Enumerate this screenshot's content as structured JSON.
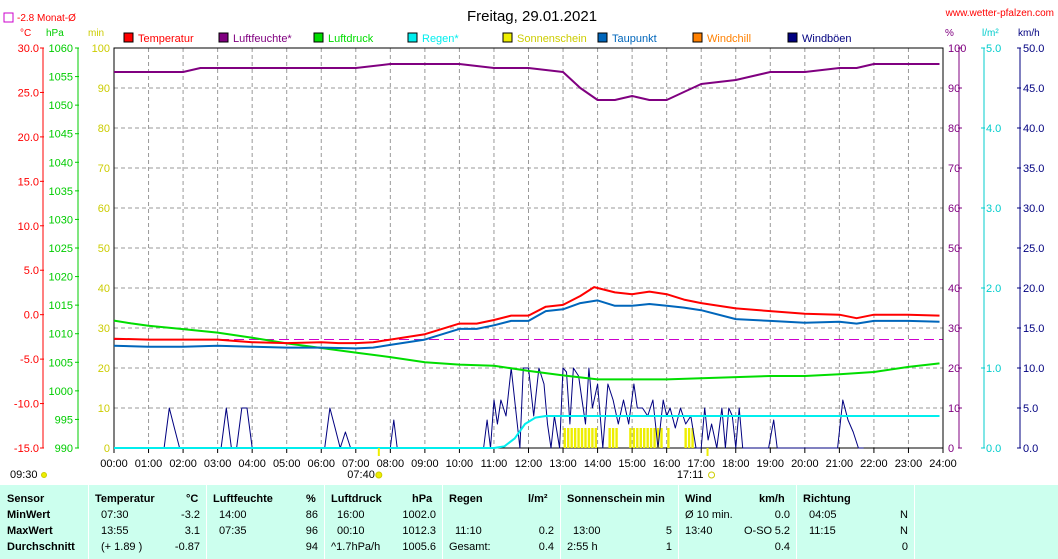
{
  "chart_data": {
    "type": "line",
    "title": "Freitag, 29.01.2021",
    "source": "www.wetter-pfalzen.com",
    "monthly_avg_label": "-2.8 Monat-Ø",
    "unit_labels": {
      "temp": "°C",
      "pressure": "hPa",
      "minutes": "min",
      "humidity": "%",
      "rain": "l/m²",
      "wind": "km/h"
    },
    "axes": {
      "temp": {
        "range": [
          -15,
          30
        ],
        "ticks": [
          "30.0",
          "25.0",
          "20.0",
          "15.0",
          "10.0",
          "5.0",
          "0.0",
          "-5.0",
          "-10.0",
          "-15.0"
        ]
      },
      "pressure": {
        "range": [
          990,
          1060
        ],
        "ticks": [
          "1060",
          "1055",
          "1050",
          "1045",
          "1040",
          "1035",
          "1030",
          "1025",
          "1020",
          "1015",
          "1010",
          "1005",
          "1000",
          "995",
          "990"
        ]
      },
      "minutes": {
        "range": [
          0,
          100
        ],
        "ticks": [
          "100",
          "90",
          "80",
          "70",
          "60",
          "50",
          "40",
          "30",
          "20",
          "10",
          "0"
        ]
      },
      "humidity": {
        "range": [
          0,
          100
        ],
        "ticks": [
          "100",
          "90",
          "80",
          "70",
          "60",
          "50",
          "40",
          "30",
          "20",
          "10",
          "0"
        ]
      },
      "rain": {
        "range": [
          0,
          5
        ],
        "ticks": [
          "5.0",
          "4.0",
          "3.0",
          "2.0",
          "1.0",
          "0.0"
        ]
      },
      "wind": {
        "range": [
          0,
          50
        ],
        "ticks": [
          "50.0",
          "45.0",
          "40.0",
          "35.0",
          "30.0",
          "25.0",
          "20.0",
          "15.0",
          "10.0",
          "5.0",
          "0.0"
        ]
      }
    },
    "x_ticks": [
      "00:00",
      "01:00",
      "02:00",
      "03:00",
      "04:00",
      "05:00",
      "06:00",
      "07:00",
      "08:00",
      "09:00",
      "10:00",
      "11:00",
      "12:00",
      "13:00",
      "14:00",
      "15:00",
      "16:00",
      "17:00",
      "18:00",
      "19:00",
      "20:00",
      "21:00",
      "22:00",
      "23:00",
      "24:00"
    ],
    "sunrise": "07:40",
    "sunset": "17:11",
    "sun_duration_label": "09:30",
    "monthly_avg_temp": -2.8,
    "legend": [
      {
        "name": "Temperatur",
        "color": "#ff0000"
      },
      {
        "name": "Luftfeuchte*",
        "color": "#800080"
      },
      {
        "name": "Luftdruck",
        "color": "#00dd00"
      },
      {
        "name": "Regen*",
        "color": "#00eeee"
      },
      {
        "name": "Sonnenschein",
        "color": "#eeee00"
      },
      {
        "name": "Taupunkt",
        "color": "#0066bb"
      },
      {
        "name": "Windchill",
        "color": "#ff8000"
      },
      {
        "name": "Windböen",
        "color": "#000080"
      }
    ],
    "series": [
      {
        "name": "Temperatur",
        "axis": "temp",
        "color": "#ff0000",
        "x": [
          0,
          1,
          2,
          3,
          4,
          5,
          6,
          6.5,
          7,
          7.5,
          8,
          9,
          10,
          10.5,
          11,
          11.5,
          12,
          12.5,
          13,
          13.5,
          13.9,
          14.5,
          15,
          15.5,
          16,
          16.5,
          17,
          18,
          19,
          20,
          21,
          21.5,
          22,
          23,
          23.9
        ],
        "y": [
          -2.7,
          -2.8,
          -2.8,
          -2.8,
          -3.1,
          -3.2,
          -3.1,
          -3.2,
          -3.2,
          -3.1,
          -2.8,
          -2.2,
          -1.0,
          -1.0,
          -0.6,
          -0.1,
          -0.1,
          0.9,
          1.1,
          2.1,
          3.1,
          2.5,
          2.3,
          2.6,
          2.3,
          1.7,
          1.3,
          0.7,
          0.4,
          0.1,
          0.0,
          -0.4,
          0.0,
          0.0,
          -0.1
        ]
      },
      {
        "name": "Taupunkt",
        "axis": "temp",
        "color": "#0066bb",
        "x": [
          0,
          1,
          2,
          3,
          4,
          5,
          6,
          7,
          7.5,
          8,
          9,
          10,
          10.5,
          11,
          11.5,
          12,
          12.5,
          13,
          13.5,
          14,
          14.5,
          15,
          15.5,
          16,
          16.5,
          17,
          18,
          19,
          20,
          21,
          21.5,
          22,
          23,
          23.9
        ],
        "y": [
          -3.5,
          -3.6,
          -3.6,
          -3.5,
          -3.6,
          -3.7,
          -3.7,
          -3.8,
          -3.7,
          -3.4,
          -2.8,
          -1.6,
          -1.6,
          -1.2,
          -0.7,
          -0.7,
          0.4,
          0.6,
          1.3,
          1.6,
          1.0,
          1.0,
          1.2,
          1.0,
          0.8,
          0.5,
          -0.5,
          -0.7,
          -0.9,
          -0.8,
          -1.0,
          -0.7,
          -0.7,
          -0.8
        ]
      },
      {
        "name": "Luftfeuchte*",
        "axis": "humidity",
        "color": "#800080",
        "x": [
          0,
          1,
          2,
          2.5,
          3,
          4,
          5,
          6,
          7,
          8,
          9,
          10,
          11,
          12,
          13,
          13.5,
          14,
          14.5,
          15,
          15.5,
          16,
          16.5,
          17,
          18,
          19,
          20,
          21,
          21.5,
          22,
          23,
          23.9
        ],
        "y": [
          94,
          94,
          94,
          95,
          95,
          95,
          95,
          95,
          95,
          96,
          96,
          96,
          95,
          95,
          94,
          90,
          87,
          87,
          88,
          87,
          87,
          89,
          91,
          92,
          94,
          94,
          95,
          95,
          96,
          96,
          96
        ]
      },
      {
        "name": "Luftdruck",
        "axis": "pressure",
        "color": "#00dd00",
        "x": [
          0,
          0.5,
          1,
          2,
          3,
          4,
          5,
          6,
          7,
          8,
          9,
          10,
          11,
          12,
          13,
          14,
          15,
          16,
          17,
          18,
          19,
          20,
          21,
          22,
          23,
          23.9
        ],
        "y": [
          1012.3,
          1011.8,
          1011.4,
          1010.8,
          1010.2,
          1009.3,
          1008.3,
          1007.5,
          1006.7,
          1005.9,
          1005.0,
          1004.6,
          1004.4,
          1003.5,
          1002.7,
          1002.0,
          1002.0,
          1002.0,
          1002.2,
          1002.4,
          1002.6,
          1002.6,
          1002.9,
          1003.3,
          1004.2,
          1004.8
        ]
      },
      {
        "name": "Regen*",
        "axis": "rain",
        "color": "#00eeee",
        "x": [
          0,
          11.0,
          11.3,
          11.6,
          11.9,
          12.2,
          12.5,
          13,
          14,
          15,
          16,
          17,
          18,
          19,
          20,
          21,
          22,
          23,
          23.9
        ],
        "y": [
          0,
          0,
          0.02,
          0.12,
          0.3,
          0.38,
          0.4,
          0.4,
          0.4,
          0.4,
          0.4,
          0.4,
          0.4,
          0.4,
          0.4,
          0.4,
          0.4,
          0.4,
          0.4
        ]
      },
      {
        "name": "Windböen",
        "axis": "wind",
        "color": "#000080",
        "x": [
          0,
          1.45,
          1.6,
          1.75,
          1.9,
          3.1,
          3.25,
          3.4,
          3.55,
          3.7,
          3.85,
          4.0,
          6.1,
          6.25,
          6.4,
          6.55,
          6.7,
          6.85,
          7.0,
          8.0,
          8.1,
          8.2,
          10.7,
          10.8,
          10.9,
          11.0,
          11.1,
          11.2,
          11.35,
          11.5,
          11.65,
          11.75,
          11.85,
          12.0,
          12.15,
          12.3,
          12.45,
          12.55,
          12.65,
          12.75,
          12.9,
          13.0,
          13.1,
          13.2,
          13.3,
          13.45,
          13.55,
          13.65,
          13.75,
          13.85,
          14.0,
          14.15,
          14.3,
          14.45,
          14.6,
          14.75,
          14.9,
          15.05,
          15.15,
          15.3,
          15.45,
          15.6,
          15.75,
          15.9,
          16.0,
          16.1,
          16.25,
          16.4,
          16.55,
          16.7,
          16.85,
          17.0,
          17.1,
          17.2,
          17.3,
          17.45,
          17.6,
          17.7,
          17.8,
          17.9,
          18.0,
          18.1,
          18.2,
          18.95,
          19.1,
          19.2,
          20.8,
          20.95,
          21.1,
          21.25,
          21.4,
          21.55,
          21.7
        ],
        "y": [
          0,
          0,
          5,
          2.5,
          0,
          0,
          5,
          0,
          0,
          5,
          5,
          0,
          0,
          5,
          2.5,
          0,
          2,
          0,
          0,
          0,
          3.5,
          0,
          0,
          3.5,
          0,
          6,
          3,
          6,
          4,
          10,
          4,
          0,
          10,
          10,
          4,
          10,
          8,
          3,
          0,
          4,
          0,
          10,
          9.5,
          3,
          10,
          9,
          6,
          3,
          10,
          5,
          8,
          0,
          8,
          6,
          3,
          6,
          3,
          8,
          5,
          5,
          4,
          6,
          0,
          6,
          4,
          5,
          2.5,
          5,
          3,
          4,
          0,
          0,
          5,
          1,
          3,
          0,
          5,
          0,
          5,
          4,
          0,
          5,
          0,
          0,
          3.5,
          0,
          0,
          0,
          6,
          3.5,
          2,
          0,
          0
        ]
      }
    ],
    "sunshine_minutes": [
      {
        "x": 13.05,
        "y": 5
      },
      {
        "x": 13.15,
        "y": 5
      },
      {
        "x": 13.25,
        "y": 5
      },
      {
        "x": 13.35,
        "y": 5
      },
      {
        "x": 13.45,
        "y": 5
      },
      {
        "x": 13.55,
        "y": 5
      },
      {
        "x": 13.65,
        "y": 5
      },
      {
        "x": 13.75,
        "y": 5
      },
      {
        "x": 13.85,
        "y": 5
      },
      {
        "x": 13.95,
        "y": 5
      },
      {
        "x": 14.35,
        "y": 5
      },
      {
        "x": 14.45,
        "y": 5
      },
      {
        "x": 14.55,
        "y": 5
      },
      {
        "x": 14.95,
        "y": 5
      },
      {
        "x": 15.05,
        "y": 5
      },
      {
        "x": 15.15,
        "y": 5
      },
      {
        "x": 15.25,
        "y": 5
      },
      {
        "x": 15.35,
        "y": 5
      },
      {
        "x": 15.45,
        "y": 5
      },
      {
        "x": 15.55,
        "y": 5
      },
      {
        "x": 15.65,
        "y": 5
      },
      {
        "x": 15.75,
        "y": 5
      },
      {
        "x": 15.85,
        "y": 5
      },
      {
        "x": 16.05,
        "y": 5
      },
      {
        "x": 16.55,
        "y": 5
      },
      {
        "x": 16.65,
        "y": 5
      },
      {
        "x": 16.75,
        "y": 5
      }
    ]
  },
  "stats": {
    "headers": {
      "sensor": "Sensor",
      "temp": "Temperatur",
      "temp_unit": "°C",
      "hum": "Luftfeuchte",
      "hum_unit": "%",
      "press": "Luftdruck",
      "press_unit": "hPa",
      "rain": "Regen",
      "rain_unit": "l/m²",
      "sun": "Sonnenschein min",
      "wind": "Wind",
      "wind_unit": "km/h",
      "dir": "Richtung"
    },
    "rows": [
      {
        "label": "MinWert",
        "temp_time": "07:30",
        "temp_val": "-3.2",
        "hum_time": "14:00",
        "hum_val": "86",
        "press_time": "16:00",
        "press_val": "1002.0",
        "rain_time": "",
        "rain_val": "",
        "sun_time": "",
        "sun_val": "",
        "wind_time": "Ø 10 min.",
        "wind_dir": "",
        "wind_val": "0.0",
        "dir_time": "04:05",
        "dir_val": "N"
      },
      {
        "label": "MaxWert",
        "temp_time": "13:55",
        "temp_val": "3.1",
        "hum_time": "07:35",
        "hum_val": "96",
        "press_time": "00:10",
        "press_val": "1012.3",
        "rain_time": "11:10",
        "rain_val": "0.2",
        "sun_time": "13:00",
        "sun_val": "5",
        "wind_time": "13:40",
        "wind_dir": "O-SO",
        "wind_val": "5.2",
        "dir_time": "11:15",
        "dir_val": "N"
      },
      {
        "label": "Durchschnitt",
        "temp_time": "(+ 1.89 )",
        "temp_val": "-0.87",
        "hum_time": "",
        "hum_val": "94",
        "press_time": "^1.7hPa/h",
        "press_val": "1005.6",
        "rain_time": "Gesamt:",
        "rain_val": "0.4",
        "sun_time": "2:55 h",
        "sun_val": "1",
        "wind_time": "",
        "wind_dir": "",
        "wind_val": "0.4",
        "dir_time": "",
        "dir_val": "0"
      }
    ]
  }
}
